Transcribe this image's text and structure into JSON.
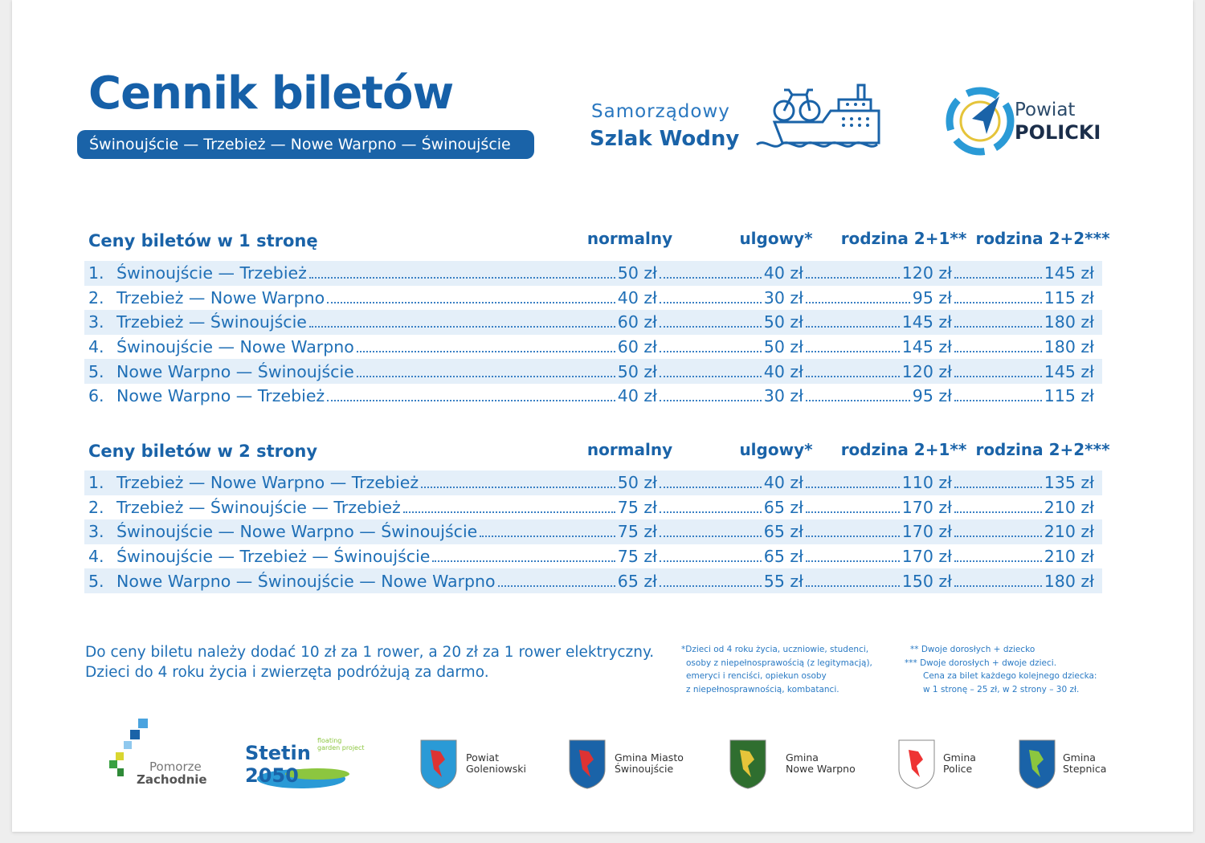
{
  "header": {
    "title": "Cennik biletów",
    "route": "Świnoujście — Trzebież — Nowe Warpno — Świnoujście",
    "brand": {
      "line1": "Samorządowy",
      "line2": "Szlak Wodny"
    },
    "powiat": {
      "line1": "Powiat",
      "line2": "POLICKI"
    }
  },
  "columns": [
    "normalny",
    "ulgowy*",
    "rodzina 2+1**",
    "rodzina 2+2***"
  ],
  "one_way": {
    "title": "Ceny biletów w 1 stronę",
    "rows": [
      {
        "n": "1.",
        "route": "Świnoujście — Trzebież",
        "p": [
          "50 zł",
          "40 zł",
          "120 zł",
          "145 zł"
        ]
      },
      {
        "n": "2.",
        "route": "Trzebież — Nowe Warpno",
        "p": [
          "40 zł",
          "30 zł",
          "95 zł",
          "115 zł"
        ]
      },
      {
        "n": "3.",
        "route": "Trzebież — Świnoujście",
        "p": [
          "60 zł",
          "50 zł",
          "145 zł",
          "180 zł"
        ]
      },
      {
        "n": "4.",
        "route": "Świnoujście — Nowe Warpno",
        "p": [
          "60 zł",
          "50 zł",
          "145 zł",
          "180 zł"
        ]
      },
      {
        "n": "5.",
        "route": "Nowe Warpno — Świnoujście",
        "p": [
          "50 zł",
          "40 zł",
          "120 zł",
          "145 zł"
        ]
      },
      {
        "n": "6.",
        "route": "Nowe Warpno — Trzebież",
        "p": [
          "40 zł",
          "30 zł",
          "95 zł",
          "115 zł"
        ]
      }
    ]
  },
  "two_way": {
    "title": "Ceny biletów w 2 strony",
    "rows": [
      {
        "n": "1.",
        "route": "Trzebież — Nowe Warpno — Trzebież",
        "p": [
          "50 zł",
          "40 zł",
          "110 zł",
          "135 zł"
        ]
      },
      {
        "n": "2.",
        "route": "Trzebież — Świnoujście — Trzebież",
        "p": [
          "75 zł",
          "65 zł",
          "170 zł",
          "210 zł"
        ]
      },
      {
        "n": "3.",
        "route": "Świnoujście — Nowe Warpno — Świnoujście",
        "p": [
          "75 zł",
          "65 zł",
          "170 zł",
          "210 zł"
        ]
      },
      {
        "n": "4.",
        "route": "Świnoujście — Trzebież — Świnoujście",
        "p": [
          "75 zł",
          "65 zł",
          "170 zł",
          "210 zł"
        ]
      },
      {
        "n": "5.",
        "route": "Nowe Warpno — Świnoujście — Nowe Warpno",
        "p": [
          "65 zł",
          "55 zł",
          "150 zł",
          "180 zł"
        ]
      }
    ]
  },
  "notes": {
    "line1": "Do ceny biletu należy dodać 10 zł za 1 rower, a 20 zł za 1 rower elektryczny.",
    "line2": "Dzieci do 4 roku życia i zwierzęta podróżują za darmo."
  },
  "footnotes": {
    "ulgowy": [
      "*Dzieci od 4 roku życia, uczniowie, studenci,",
      "osoby z niepełnosprawością (z legitymacją),",
      "emeryci i renciści, opiekun osoby",
      "z niepełnosprawnością, kombatanci."
    ],
    "r21": "** Dwoje dorosłych + dziecko",
    "r22": [
      "*** Dwoje dorosłych + dwoje dzieci.",
      "Cena za bilet każdego kolejnego dziecka:",
      "w 1 stronę – 25 zł, w 2 strony – 30 zł."
    ]
  },
  "partners": [
    {
      "name": "Pomorze",
      "name2": "Zachodnie"
    },
    {
      "name": "Stetin 2050",
      "name2": "floating garden project"
    },
    {
      "name": "Powiat",
      "name2": "Goleniowski"
    },
    {
      "name": "Gmina Miasto",
      "name2": "Świnoujście"
    },
    {
      "name": "Gmina",
      "name2": "Nowe Warpno"
    },
    {
      "name": "Gmina",
      "name2": "Police"
    },
    {
      "name": "Gmina",
      "name2": "Stepnica"
    }
  ]
}
